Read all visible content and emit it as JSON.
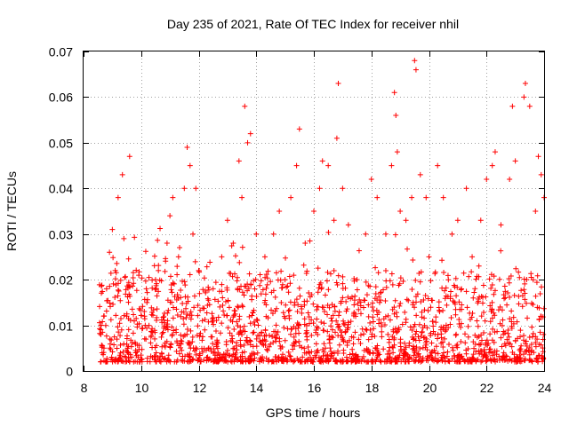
{
  "chart_data": {
    "type": "scatter",
    "title": "Day 235 of 2021, Rate Of TEC Index for receiver nhil",
    "xlabel": "GPS time / hours",
    "ylabel": "ROTI / TECUs",
    "xlim": [
      8,
      24
    ],
    "ylim": [
      0,
      0.07
    ],
    "grid": true,
    "marker": "plus",
    "color": "#ff0000",
    "xticks": [
      "8",
      "10",
      "12",
      "14",
      "16",
      "18",
      "20",
      "22",
      "24"
    ],
    "yticks": [
      "0",
      "0.01",
      "0.02",
      "0.03",
      "0.04",
      "0.05",
      "0.06",
      "0.07"
    ],
    "series": [
      {
        "name": "ROTI",
        "points": [
          [
            8.6,
            0.008
          ],
          [
            8.7,
            0.012
          ],
          [
            8.8,
            0.018
          ],
          [
            8.9,
            0.026
          ],
          [
            9.0,
            0.031
          ],
          [
            9.1,
            0.022
          ],
          [
            9.2,
            0.038
          ],
          [
            9.35,
            0.043
          ],
          [
            9.4,
            0.029
          ],
          [
            9.6,
            0.047
          ],
          [
            9.5,
            0.012
          ],
          [
            10.2,
            0.015
          ],
          [
            10.5,
            0.02
          ],
          [
            10.6,
            0.022
          ],
          [
            10.9,
            0.028
          ],
          [
            11.0,
            0.034
          ],
          [
            11.1,
            0.038
          ],
          [
            11.3,
            0.025
          ],
          [
            11.5,
            0.04
          ],
          [
            11.6,
            0.049
          ],
          [
            11.7,
            0.045
          ],
          [
            11.8,
            0.03
          ],
          [
            11.9,
            0.04
          ],
          [
            12.0,
            0.022
          ],
          [
            12.5,
            0.018
          ],
          [
            12.8,
            0.025
          ],
          [
            13.0,
            0.033
          ],
          [
            13.2,
            0.028
          ],
          [
            13.4,
            0.046
          ],
          [
            13.5,
            0.038
          ],
          [
            13.6,
            0.058
          ],
          [
            13.7,
            0.05
          ],
          [
            13.8,
            0.052
          ],
          [
            14.0,
            0.03
          ],
          [
            14.3,
            0.025
          ],
          [
            14.6,
            0.03
          ],
          [
            14.8,
            0.035
          ],
          [
            15.0,
            0.02
          ],
          [
            15.2,
            0.038
          ],
          [
            15.4,
            0.045
          ],
          [
            15.5,
            0.053
          ],
          [
            15.7,
            0.028
          ],
          [
            16.0,
            0.035
          ],
          [
            16.2,
            0.04
          ],
          [
            16.3,
            0.046
          ],
          [
            16.5,
            0.045
          ],
          [
            16.7,
            0.033
          ],
          [
            16.8,
            0.051
          ],
          [
            16.85,
            0.063
          ],
          [
            17.0,
            0.04
          ],
          [
            17.2,
            0.032
          ],
          [
            17.5,
            0.02
          ],
          [
            17.8,
            0.03
          ],
          [
            18.0,
            0.042
          ],
          [
            18.2,
            0.038
          ],
          [
            18.5,
            0.03
          ],
          [
            18.7,
            0.045
          ],
          [
            18.8,
            0.061
          ],
          [
            18.85,
            0.056
          ],
          [
            18.9,
            0.048
          ],
          [
            19.0,
            0.035
          ],
          [
            19.2,
            0.033
          ],
          [
            19.4,
            0.038
          ],
          [
            19.5,
            0.068
          ],
          [
            19.55,
            0.066
          ],
          [
            19.7,
            0.043
          ],
          [
            19.9,
            0.038
          ],
          [
            20.0,
            0.025
          ],
          [
            20.3,
            0.045
          ],
          [
            20.5,
            0.038
          ],
          [
            20.8,
            0.03
          ],
          [
            21.0,
            0.033
          ],
          [
            21.3,
            0.04
          ],
          [
            21.5,
            0.025
          ],
          [
            21.8,
            0.033
          ],
          [
            22.0,
            0.042
          ],
          [
            22.2,
            0.045
          ],
          [
            22.3,
            0.048
          ],
          [
            22.5,
            0.032
          ],
          [
            22.8,
            0.042
          ],
          [
            22.9,
            0.058
          ],
          [
            23.0,
            0.046
          ],
          [
            23.3,
            0.06
          ],
          [
            23.35,
            0.063
          ],
          [
            23.5,
            0.058
          ],
          [
            23.7,
            0.035
          ],
          [
            23.8,
            0.047
          ],
          [
            23.9,
            0.043
          ],
          [
            24.0,
            0.038
          ]
        ]
      }
    ]
  }
}
